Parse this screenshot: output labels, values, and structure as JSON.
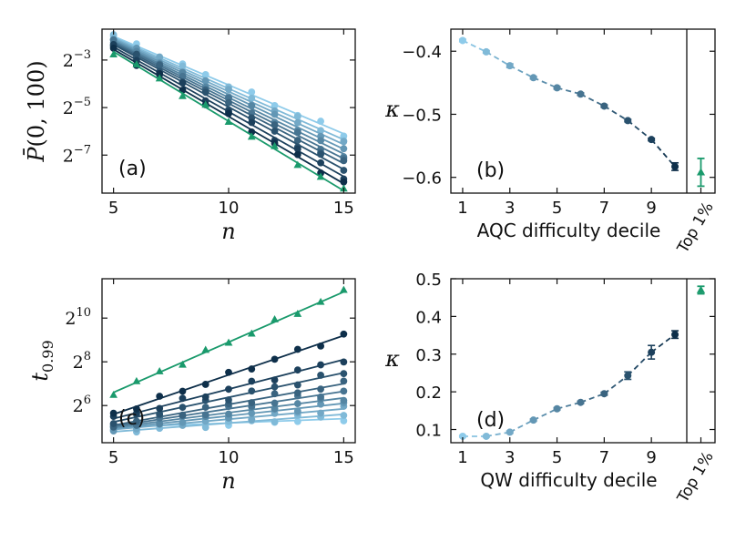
{
  "colors": {
    "green": "#1a9a6c",
    "gradient_dark": "#0e2f4a",
    "gradient_light": "#8ecbea"
  },
  "chart_data": [
    {
      "panel": "a",
      "type": "scatter",
      "panel_label": "(a)",
      "xlabel": "n",
      "ylabel": "P̄(0, 100)",
      "y_scale": "log2",
      "xlim": [
        4.5,
        15.5
      ],
      "ylim_log2": [
        -8.6,
        -1.7
      ],
      "x_ticks": [
        5,
        10,
        15
      ],
      "y_ticks_exp": [
        -3,
        -5,
        -7
      ],
      "x": [
        5,
        6,
        7,
        8,
        9,
        10,
        11,
        12,
        13,
        14,
        15
      ],
      "series": [
        {
          "group": "decile",
          "rank": 1,
          "marker": "circle",
          "start": -2.0,
          "end": -6.1
        },
        {
          "group": "decile",
          "rank": 2,
          "marker": "circle",
          "start": -2.05,
          "end": -6.35
        },
        {
          "group": "decile",
          "rank": 3,
          "marker": "circle",
          "start": -2.1,
          "end": -6.55
        },
        {
          "group": "decile",
          "rank": 4,
          "marker": "circle",
          "start": -2.15,
          "end": -6.75
        },
        {
          "group": "decile",
          "rank": 5,
          "marker": "circle",
          "start": -2.2,
          "end": -6.95
        },
        {
          "group": "decile",
          "rank": 6,
          "marker": "circle",
          "start": -2.25,
          "end": -7.15
        },
        {
          "group": "decile",
          "rank": 7,
          "marker": "circle",
          "start": -2.3,
          "end": -7.35
        },
        {
          "group": "decile",
          "rank": 8,
          "marker": "circle",
          "start": -2.35,
          "end": -7.6
        },
        {
          "group": "decile",
          "rank": 9,
          "marker": "circle",
          "start": -2.45,
          "end": -7.9
        },
        {
          "group": "decile",
          "rank": 10,
          "marker": "circle",
          "start": -2.55,
          "end": -8.2
        },
        {
          "group": "top",
          "rank": 0,
          "marker": "triangle",
          "start": -2.65,
          "end": -8.5
        }
      ]
    },
    {
      "panel": "b",
      "type": "line",
      "panel_label": "(b)",
      "xlabel": "AQC difficulty decile",
      "ylabel": "κ",
      "extra_label": "Top 1%",
      "xlim": [
        0.5,
        10.5
      ],
      "ylim": [
        -0.625,
        -0.365
      ],
      "x_ticks": [
        1,
        3,
        5,
        7,
        9
      ],
      "y_ticks": [
        -0.4,
        -0.5,
        -0.6
      ],
      "x": [
        1,
        2,
        3,
        4,
        5,
        6,
        7,
        8,
        9,
        10
      ],
      "values": [
        -0.383,
        -0.401,
        -0.423,
        -0.442,
        -0.458,
        -0.468,
        -0.487,
        -0.51,
        -0.54,
        -0.583
      ],
      "errors": [
        0.002,
        0.002,
        0.003,
        0.002,
        0.002,
        0.002,
        0.002,
        0.002,
        0.002,
        0.006
      ],
      "top": {
        "value": -0.592,
        "error": 0.022
      }
    },
    {
      "panel": "c",
      "type": "scatter",
      "panel_label": "(c)",
      "xlabel": "n",
      "ylabel": "t0.99",
      "y_scale": "log2",
      "xlim": [
        4.5,
        15.5
      ],
      "ylim_log2": [
        4.3,
        11.8
      ],
      "x_ticks": [
        5,
        10,
        15
      ],
      "y_ticks_exp": [
        6,
        8,
        10
      ],
      "x": [
        5,
        6,
        7,
        8,
        9,
        10,
        11,
        12,
        13,
        14,
        15
      ],
      "series": [
        {
          "group": "decile",
          "rank": 1,
          "marker": "circle",
          "start": 5.0,
          "end": 5.4
        },
        {
          "group": "decile",
          "rank": 2,
          "marker": "circle",
          "start": 4.8,
          "end": 5.6
        },
        {
          "group": "decile",
          "rank": 3,
          "marker": "circle",
          "start": 4.9,
          "end": 5.85
        },
        {
          "group": "decile",
          "rank": 4,
          "marker": "circle",
          "start": 4.95,
          "end": 6.1
        },
        {
          "group": "decile",
          "rank": 5,
          "marker": "circle",
          "start": 5.0,
          "end": 6.35
        },
        {
          "group": "decile",
          "rank": 6,
          "marker": "circle",
          "start": 5.05,
          "end": 6.65
        },
        {
          "group": "decile",
          "rank": 7,
          "marker": "circle",
          "start": 5.1,
          "end": 7.0
        },
        {
          "group": "decile",
          "rank": 8,
          "marker": "circle",
          "start": 5.25,
          "end": 7.5
        },
        {
          "group": "decile",
          "rank": 9,
          "marker": "circle",
          "start": 5.4,
          "end": 8.1
        },
        {
          "group": "decile",
          "rank": 10,
          "marker": "circle",
          "start": 5.6,
          "end": 9.2
        },
        {
          "group": "top",
          "rank": 0,
          "marker": "triangle",
          "start": 6.6,
          "end": 11.2
        }
      ]
    },
    {
      "panel": "d",
      "type": "line",
      "panel_label": "(d)",
      "xlabel": "QW difficulty decile",
      "ylabel": "κ",
      "extra_label": "Top 1%",
      "xlim": [
        0.5,
        10.5
      ],
      "ylim": [
        0.065,
        0.5
      ],
      "x_ticks": [
        1,
        3,
        5,
        7,
        9
      ],
      "y_ticks": [
        0.1,
        0.2,
        0.3,
        0.4,
        0.5
      ],
      "x": [
        1,
        2,
        3,
        4,
        5,
        6,
        7,
        8,
        9,
        10
      ],
      "values": [
        0.082,
        0.082,
        0.093,
        0.125,
        0.155,
        0.172,
        0.195,
        0.243,
        0.305,
        0.352
      ],
      "errors": [
        0.002,
        0.002,
        0.003,
        0.003,
        0.003,
        0.003,
        0.004,
        0.01,
        0.018,
        0.01
      ],
      "top": {
        "value": 0.47,
        "error": 0.01
      }
    }
  ]
}
